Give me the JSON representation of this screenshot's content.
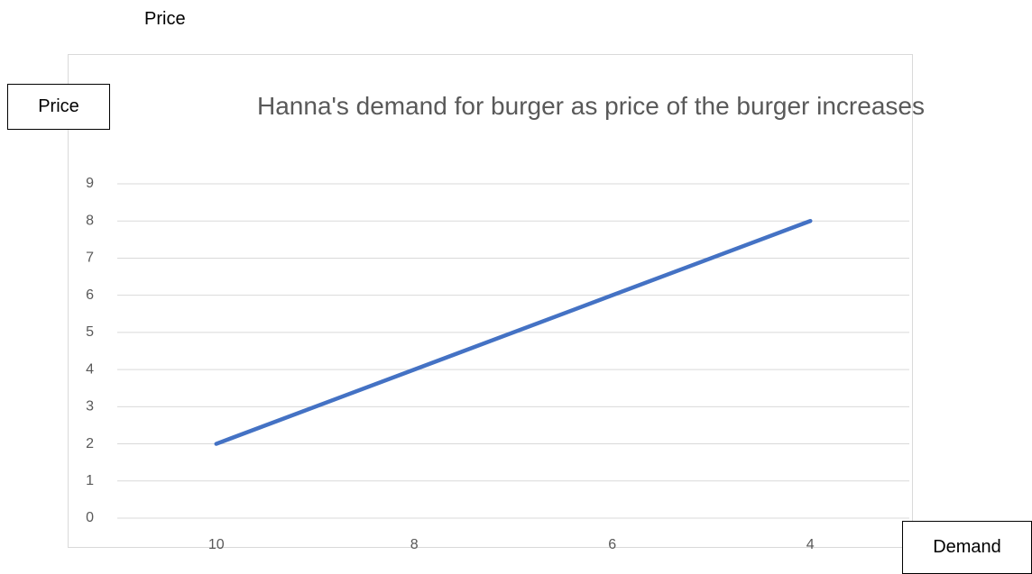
{
  "chart_data": {
    "type": "line",
    "title": "Hanna's demand for burger as price of the burger increases",
    "annotations": [
      "Price",
      "Price",
      "Demand"
    ],
    "categories": [
      "10",
      "8",
      "6",
      "4"
    ],
    "values": [
      2,
      4,
      6,
      8
    ],
    "color": "#4472c4",
    "ylim": [
      0,
      9
    ],
    "yticks": [
      0,
      1,
      2,
      3,
      4,
      5,
      6,
      7,
      8,
      9
    ],
    "grid": true
  }
}
